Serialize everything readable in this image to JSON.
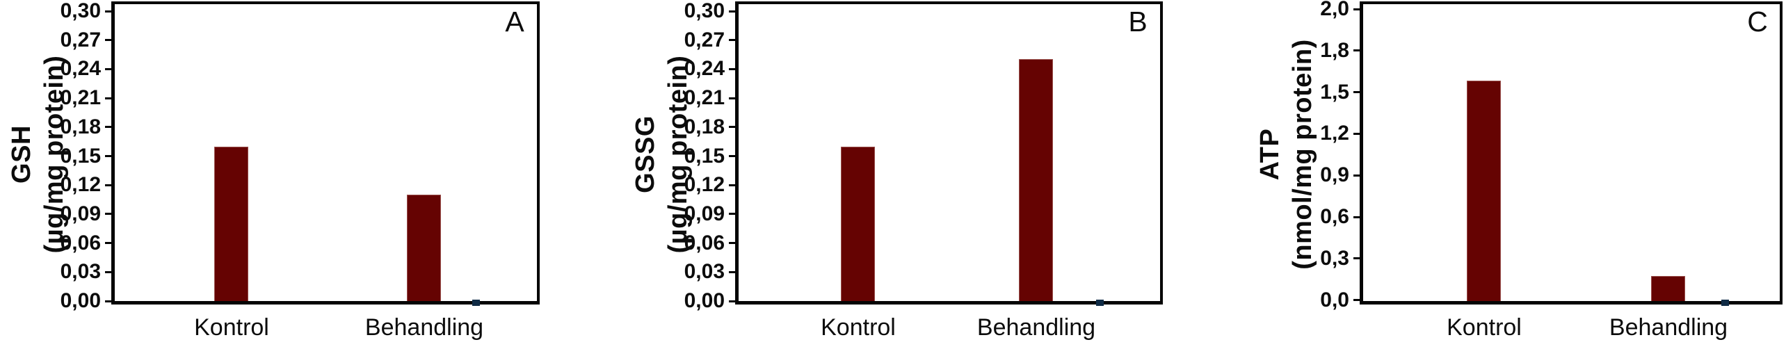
{
  "figure": {
    "background": "#ffffff",
    "bar_color": "#650302",
    "axis_color": "#050505",
    "text_color": "#0c0c0c",
    "baseline_marker_color": "#0f2b45"
  },
  "chart_data": [
    {
      "type": "bar",
      "panel_label": "A",
      "ylabel_line1": "GSH",
      "ylabel_line2": "(µg/mg protein)",
      "xlabel": "",
      "categories": [
        "Kontrol",
        "Behandling"
      ],
      "values": [
        0.16,
        0.11
      ],
      "yticks": [
        "0,30",
        "0,27",
        "0,24",
        "0,21",
        "0,18",
        "0,15",
        "0,12",
        "0,09",
        "0,06",
        "0,03",
        "0,00"
      ],
      "ylim": [
        0,
        0.3
      ],
      "tick_step": 0.03,
      "grid": false,
      "legend": "none"
    },
    {
      "type": "bar",
      "panel_label": "B",
      "ylabel_line1": "GSSG",
      "ylabel_line2": "(µg/mg protein)",
      "xlabel": "",
      "categories": [
        "Kontrol",
        "Behandling"
      ],
      "values": [
        0.16,
        0.25
      ],
      "yticks": [
        "0,30",
        "0,27",
        "0,24",
        "0,21",
        "0,18",
        "0,15",
        "0,12",
        "0,09",
        "0,06",
        "0,03",
        "0,00"
      ],
      "ylim": [
        0,
        0.3
      ],
      "tick_step": 0.03,
      "grid": false,
      "legend": "none"
    },
    {
      "type": "bar",
      "panel_label": "C",
      "ylabel_line1": "ATP",
      "ylabel_line2": "(nmol/mg protein)",
      "xlabel": "",
      "categories": [
        "Kontrol",
        "Behandling"
      ],
      "values": [
        1.59,
        0.18
      ],
      "yticks": [
        "2,0",
        "1,8",
        "1,5",
        "1,2",
        "0,9",
        "0,6",
        "0,3",
        "0,0"
      ],
      "ylim": [
        0,
        2.0
      ],
      "tick_step": 0.3,
      "grid": false,
      "legend": "none"
    }
  ]
}
